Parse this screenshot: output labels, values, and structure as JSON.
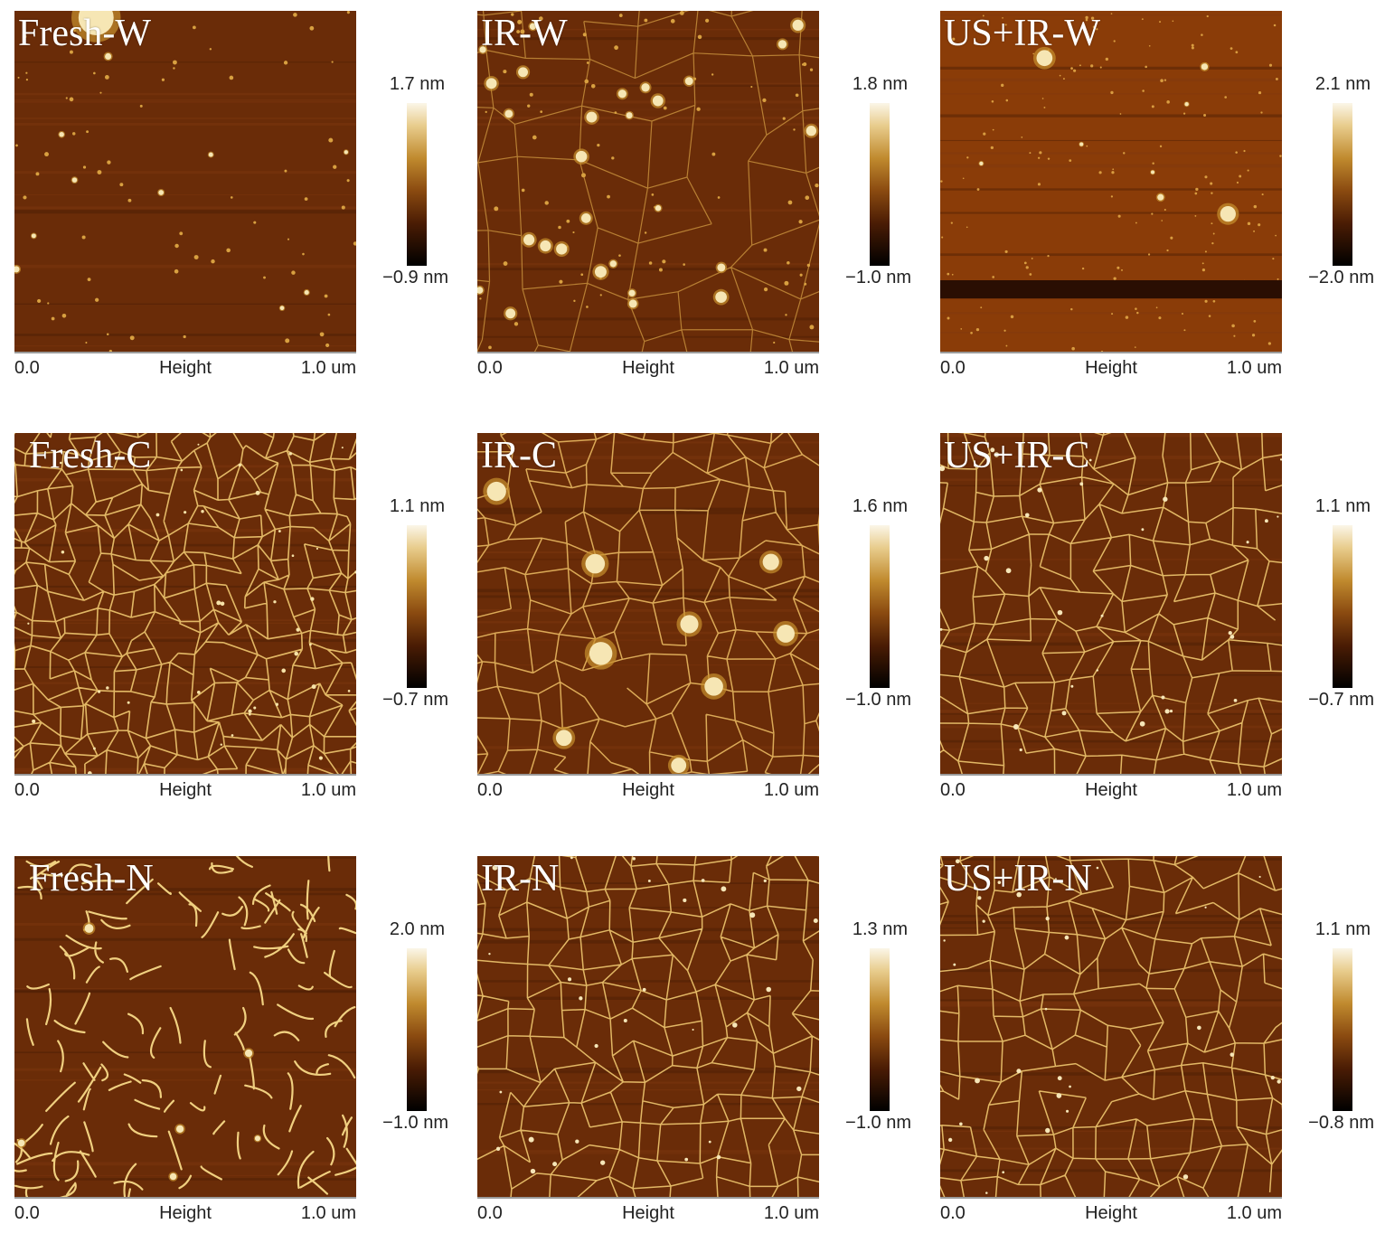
{
  "panels": [
    {
      "label": "Fresh-W",
      "max": "1.7 nm",
      "min": "−0.9 nm",
      "texture": "dots"
    },
    {
      "label": "IR-W",
      "max": "1.8 nm",
      "min": "−1.0 nm",
      "texture": "mixed"
    },
    {
      "label": "US+IR-W",
      "max": "2.1 nm",
      "min": "−2.0 nm",
      "texture": "fine-dots"
    },
    {
      "label": "Fresh-C",
      "max": "1.1 nm",
      "min": "−0.7 nm",
      "texture": "dense-network"
    },
    {
      "label": "IR-C",
      "max": "1.6 nm",
      "min": "−1.0 nm",
      "texture": "network-blobs"
    },
    {
      "label": "US+IR-C",
      "max": "1.1 nm",
      "min": "−0.7 nm",
      "texture": "network"
    },
    {
      "label": "Fresh-N",
      "max": "2.0 nm",
      "min": "−1.0 nm",
      "texture": "curly-fibers"
    },
    {
      "label": "IR-N",
      "max": "1.3 nm",
      "min": "−1.0 nm",
      "texture": "network"
    },
    {
      "label": "US+IR-N",
      "max": "1.1 nm",
      "min": "−0.8 nm",
      "texture": "network"
    }
  ],
  "axis": {
    "start": "0.0",
    "label": "Height",
    "end": "1.0 um"
  },
  "colors": {
    "background": "#6e2e08",
    "bright": "#fbf6e8",
    "dark": "#000000"
  }
}
